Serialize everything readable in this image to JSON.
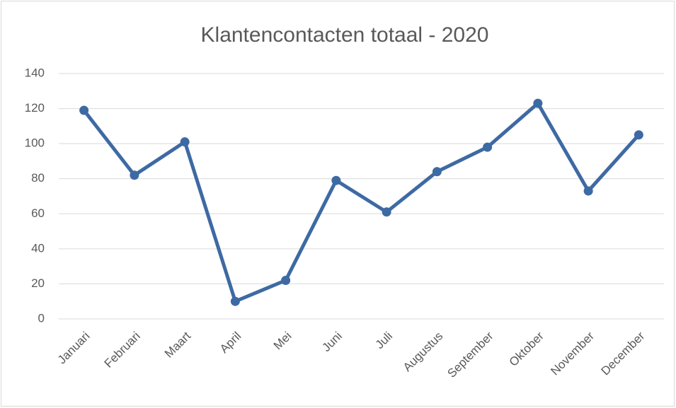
{
  "chart_data": {
    "type": "line",
    "title": "Klantencontacten totaal - 2020",
    "categories": [
      "Januari",
      "Februari",
      "Maart",
      "April",
      "Mei",
      "Juni",
      "Juli",
      "Augustus",
      "September",
      "Oktober",
      "November",
      "December"
    ],
    "series": [
      {
        "name": "Klantencontacten",
        "color": "#3e6aa3",
        "values": [
          119,
          82,
          101,
          10,
          22,
          79,
          61,
          84,
          98,
          123,
          73,
          105
        ]
      }
    ],
    "ylim": [
      0,
      140
    ],
    "yticks": [
      0,
      20,
      40,
      60,
      80,
      100,
      120,
      140
    ],
    "grid": true
  }
}
